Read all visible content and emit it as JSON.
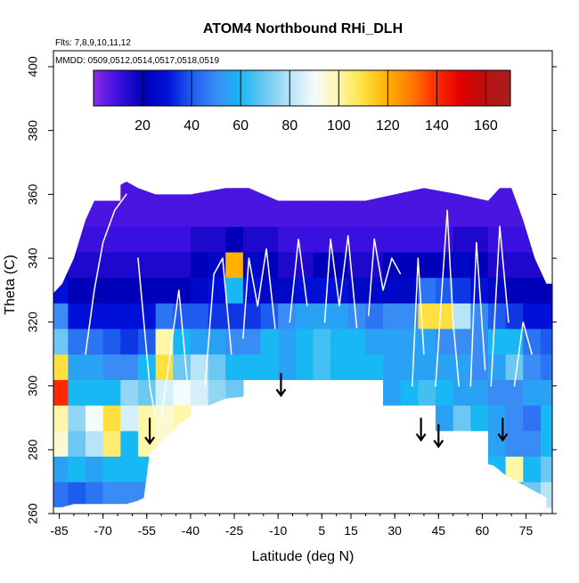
{
  "chart_data": {
    "type": "heatmap",
    "title": "ATOM4 Northbound RHi_DLH",
    "subtitle_flights": "Flts: 7,8,9,10,11,12",
    "subtitle_dates": "MMDD: 0509,0512,0514,0517,0518,0519",
    "xlabel": "Latitude (deg N)",
    "ylabel": "Theta (C)",
    "xlim": [
      -87,
      84
    ],
    "ylim": [
      260,
      405
    ],
    "x_ticks": [
      {
        "value": -85,
        "label": "-85"
      },
      {
        "value": -70,
        "label": "-70"
      },
      {
        "value": -55,
        "label": "-55"
      },
      {
        "value": -40,
        "label": "-40"
      },
      {
        "value": -25,
        "label": "-25"
      },
      {
        "value": -10,
        "label": "-10"
      },
      {
        "value": 5,
        "label": "5"
      },
      {
        "value": 15,
        "label": "15"
      },
      {
        "value": 30,
        "label": "30"
      },
      {
        "value": 45,
        "label": "45"
      },
      {
        "value": 60,
        "label": "60"
      },
      {
        "value": 75,
        "label": "75"
      }
    ],
    "y_ticks": [
      {
        "value": 260,
        "label": "260"
      },
      {
        "value": 280,
        "label": "280"
      },
      {
        "value": 300,
        "label": "300"
      },
      {
        "value": 320,
        "label": "320"
      },
      {
        "value": 340,
        "label": "340"
      },
      {
        "value": 360,
        "label": "360"
      },
      {
        "value": 380,
        "label": "380"
      },
      {
        "value": 400,
        "label": "400"
      }
    ],
    "colorbar": {
      "range": [
        0,
        170
      ],
      "ticks": [
        {
          "value": 20,
          "label": "20"
        },
        {
          "value": 40,
          "label": "40"
        },
        {
          "value": 60,
          "label": "60"
        },
        {
          "value": 80,
          "label": "80"
        },
        {
          "value": 100,
          "label": "100"
        },
        {
          "value": 120,
          "label": "120"
        },
        {
          "value": 140,
          "label": "140"
        },
        {
          "value": 160,
          "label": "160"
        }
      ],
      "stops": [
        {
          "value": 0,
          "color": "#8a2be2"
        },
        {
          "value": 10,
          "color": "#3a10e0"
        },
        {
          "value": 20,
          "color": "#0000b8"
        },
        {
          "value": 30,
          "color": "#0010d8"
        },
        {
          "value": 40,
          "color": "#1e5cf0"
        },
        {
          "value": 50,
          "color": "#3a8cf5"
        },
        {
          "value": 60,
          "color": "#18b8f5"
        },
        {
          "value": 70,
          "color": "#6cc8f2"
        },
        {
          "value": 80,
          "color": "#b8e4f8"
        },
        {
          "value": 90,
          "color": "#f4fbfb"
        },
        {
          "value": 100,
          "color": "#fff7a8"
        },
        {
          "value": 110,
          "color": "#ffe040"
        },
        {
          "value": 120,
          "color": "#ffb000"
        },
        {
          "value": 130,
          "color": "#ff7800"
        },
        {
          "value": 140,
          "color": "#ff2800"
        },
        {
          "value": 150,
          "color": "#e00000"
        },
        {
          "value": 160,
          "color": "#b81010"
        },
        {
          "value": 170,
          "color": "#a82020"
        }
      ]
    },
    "tropopause_boundary": [
      {
        "lat": -88,
        "theta": 328
      },
      {
        "lat": -84,
        "theta": 332
      },
      {
        "lat": -80,
        "theta": 340
      },
      {
        "lat": -76,
        "theta": 352
      },
      {
        "lat": -72,
        "theta": 360
      },
      {
        "lat": -66,
        "theta": 362
      },
      {
        "lat": -62,
        "theta": 364
      },
      {
        "lat": -58,
        "theta": 362
      },
      {
        "lat": -52,
        "theta": 360
      },
      {
        "lat": -40,
        "theta": 360
      },
      {
        "lat": -28,
        "theta": 362
      },
      {
        "lat": -20,
        "theta": 362
      },
      {
        "lat": -10,
        "theta": 358
      },
      {
        "lat": 0,
        "theta": 358
      },
      {
        "lat": 10,
        "theta": 358
      },
      {
        "lat": 20,
        "theta": 358
      },
      {
        "lat": 30,
        "theta": 360
      },
      {
        "lat": 40,
        "theta": 362
      },
      {
        "lat": 52,
        "theta": 360
      },
      {
        "lat": 62,
        "theta": 358
      },
      {
        "lat": 66,
        "theta": 362
      },
      {
        "lat": 70,
        "theta": 362
      },
      {
        "lat": 74,
        "theta": 352
      },
      {
        "lat": 78,
        "theta": 340
      },
      {
        "lat": 82,
        "theta": 332
      }
    ],
    "surface_boundary": [
      {
        "lat": -88,
        "theta": 262
      },
      {
        "lat": -84,
        "theta": 262
      },
      {
        "lat": -80,
        "theta": 263
      },
      {
        "lat": -70,
        "theta": 263
      },
      {
        "lat": -62,
        "theta": 263
      },
      {
        "lat": -58,
        "theta": 264
      },
      {
        "lat": -56,
        "theta": 265
      },
      {
        "lat": -54,
        "theta": 279
      },
      {
        "lat": -50,
        "theta": 282
      },
      {
        "lat": -44,
        "theta": 288
      },
      {
        "lat": -36,
        "theta": 293
      },
      {
        "lat": -28,
        "theta": 296
      },
      {
        "lat": -18,
        "theta": 297
      },
      {
        "lat": -10,
        "theta": 298
      },
      {
        "lat": -2,
        "theta": 298
      },
      {
        "lat": 6,
        "theta": 297
      },
      {
        "lat": 14,
        "theta": 295
      },
      {
        "lat": 22,
        "theta": 292
      },
      {
        "lat": 30,
        "theta": 289
      },
      {
        "lat": 38,
        "theta": 286
      },
      {
        "lat": 45,
        "theta": 282
      },
      {
        "lat": 50,
        "theta": 285
      },
      {
        "lat": 56,
        "theta": 282
      },
      {
        "lat": 60,
        "theta": 276
      },
      {
        "lat": 64,
        "theta": 275
      },
      {
        "lat": 68,
        "theta": 272
      },
      {
        "lat": 72,
        "theta": 270
      },
      {
        "lat": 76,
        "theta": 268
      },
      {
        "lat": 82,
        "theta": 265
      }
    ],
    "rhi_field": {
      "lat_bins": [
        -88,
        -82,
        -76,
        -70,
        -64,
        -58,
        -52,
        -46,
        -40,
        -34,
        -28,
        -22,
        -16,
        -10,
        -4,
        2,
        8,
        14,
        20,
        26,
        32,
        38,
        44,
        50,
        56,
        62,
        68,
        74,
        80
      ],
      "theta_bins": [
        262,
        270,
        278,
        286,
        294,
        302,
        310,
        318,
        326,
        334,
        342,
        350,
        358
      ],
      "rows": [
        [
          45,
          40,
          45,
          50,
          50,
          50,
          0,
          0,
          0,
          0,
          0,
          0,
          0,
          0,
          0,
          0,
          0,
          0,
          0,
          0,
          0,
          0,
          0,
          0,
          0,
          70,
          60,
          70,
          80
        ],
        [
          55,
          60,
          55,
          60,
          60,
          60,
          0,
          0,
          0,
          0,
          0,
          0,
          0,
          0,
          0,
          0,
          0,
          0,
          0,
          0,
          0,
          0,
          0,
          0,
          0,
          60,
          100,
          60,
          70
        ],
        [
          95,
          70,
          80,
          105,
          60,
          100,
          95,
          0,
          0,
          0,
          0,
          0,
          0,
          0,
          0,
          0,
          0,
          0,
          0,
          0,
          0,
          0,
          0,
          0,
          0,
          55,
          50,
          50,
          60
        ],
        [
          100,
          75,
          90,
          110,
          85,
          100,
          95,
          100,
          0,
          0,
          0,
          0,
          0,
          0,
          0,
          0,
          0,
          0,
          0,
          0,
          0,
          0,
          55,
          70,
          60,
          55,
          50,
          45,
          60
        ],
        [
          140,
          60,
          60,
          60,
          75,
          70,
          85,
          90,
          85,
          75,
          70,
          0,
          0,
          0,
          0,
          0,
          0,
          0,
          0,
          55,
          60,
          65,
          60,
          55,
          55,
          50,
          50,
          55,
          55
        ],
        [
          110,
          55,
          55,
          50,
          50,
          60,
          110,
          70,
          80,
          70,
          60,
          60,
          60,
          55,
          60,
          65,
          60,
          60,
          60,
          55,
          55,
          55,
          55,
          55,
          50,
          55,
          70,
          50,
          45
        ],
        [
          70,
          45,
          45,
          40,
          35,
          40,
          100,
          60,
          55,
          55,
          50,
          50,
          60,
          55,
          60,
          65,
          60,
          60,
          55,
          55,
          55,
          55,
          50,
          50,
          50,
          60,
          60,
          45,
          40
        ],
        [
          50,
          30,
          30,
          30,
          30,
          30,
          45,
          40,
          40,
          35,
          35,
          35,
          40,
          50,
          55,
          55,
          55,
          50,
          45,
          50,
          50,
          110,
          110,
          80,
          50,
          40,
          35,
          30,
          30
        ],
        [
          30,
          20,
          20,
          20,
          20,
          20,
          20,
          20,
          25,
          30,
          60,
          30,
          25,
          25,
          30,
          30,
          30,
          25,
          25,
          25,
          25,
          45,
          40,
          35,
          30,
          25,
          20,
          20,
          20
        ],
        [
          20,
          15,
          15,
          15,
          15,
          15,
          15,
          15,
          20,
          25,
          120,
          25,
          20,
          15,
          15,
          20,
          20,
          15,
          15,
          20,
          20,
          20,
          20,
          25,
          20,
          15,
          15,
          15,
          15
        ],
        [
          10,
          10,
          10,
          10,
          10,
          10,
          10,
          10,
          15,
          15,
          20,
          15,
          15,
          10,
          10,
          10,
          10,
          10,
          10,
          10,
          10,
          10,
          10,
          15,
          15,
          10,
          10,
          10,
          10
        ],
        [
          8,
          8,
          8,
          8,
          8,
          8,
          8,
          8,
          8,
          8,
          8,
          8,
          8,
          8,
          8,
          8,
          8,
          8,
          8,
          8,
          8,
          8,
          8,
          8,
          8,
          8,
          8,
          8,
          8
        ],
        [
          0,
          0,
          0,
          0,
          8,
          8,
          8,
          8,
          8,
          8,
          8,
          8,
          8,
          8,
          8,
          8,
          8,
          8,
          8,
          8,
          8,
          8,
          8,
          8,
          8,
          8,
          8,
          0,
          0
        ]
      ]
    },
    "aircraft_tracks": [
      [
        {
          "lat": -76,
          "theta": 310
        },
        {
          "lat": -73,
          "theta": 330
        },
        {
          "lat": -70,
          "theta": 345
        },
        {
          "lat": -66,
          "theta": 355
        },
        {
          "lat": -62,
          "theta": 360
        }
      ],
      [
        {
          "lat": -58,
          "theta": 340
        },
        {
          "lat": -56,
          "theta": 320
        },
        {
          "lat": -54,
          "theta": 300
        },
        {
          "lat": -52,
          "theta": 290
        }
      ],
      [
        {
          "lat": -50,
          "theta": 290
        },
        {
          "lat": -47,
          "theta": 310
        },
        {
          "lat": -44,
          "theta": 330
        },
        {
          "lat": -41,
          "theta": 300
        }
      ],
      [
        {
          "lat": -35,
          "theta": 300
        },
        {
          "lat": -32,
          "theta": 335
        },
        {
          "lat": -29,
          "theta": 340
        },
        {
          "lat": -26,
          "theta": 310
        }
      ],
      [
        {
          "lat": -22,
          "theta": 315
        },
        {
          "lat": -20,
          "theta": 340
        },
        {
          "lat": -17,
          "theta": 325
        },
        {
          "lat": -14,
          "theta": 343
        },
        {
          "lat": -11,
          "theta": 318
        }
      ],
      [
        {
          "lat": -6,
          "theta": 320
        },
        {
          "lat": -3,
          "theta": 346
        },
        {
          "lat": 0,
          "theta": 325
        }
      ],
      [
        {
          "lat": 6,
          "theta": 320
        },
        {
          "lat": 8,
          "theta": 346
        },
        {
          "lat": 11,
          "theta": 325
        },
        {
          "lat": 14,
          "theta": 347
        },
        {
          "lat": 17,
          "theta": 318
        }
      ],
      [
        {
          "lat": 21,
          "theta": 322
        },
        {
          "lat": 23,
          "theta": 346
        },
        {
          "lat": 26,
          "theta": 330
        },
        {
          "lat": 29,
          "theta": 340
        },
        {
          "lat": 32,
          "theta": 335
        }
      ],
      [
        {
          "lat": 36,
          "theta": 300
        },
        {
          "lat": 38,
          "theta": 340
        },
        {
          "lat": 40,
          "theta": 310
        }
      ],
      [
        {
          "lat": 44,
          "theta": 300
        },
        {
          "lat": 48,
          "theta": 355
        },
        {
          "lat": 50,
          "theta": 320
        },
        {
          "lat": 52,
          "theta": 300
        }
      ],
      [
        {
          "lat": 56,
          "theta": 300
        },
        {
          "lat": 58,
          "theta": 345
        },
        {
          "lat": 61,
          "theta": 305
        }
      ],
      [
        {
          "lat": 63,
          "theta": 300
        },
        {
          "lat": 66,
          "theta": 350
        },
        {
          "lat": 69,
          "theta": 320
        }
      ],
      [
        {
          "lat": 71,
          "theta": 300
        },
        {
          "lat": 74,
          "theta": 320
        },
        {
          "lat": 77,
          "theta": 310
        }
      ]
    ],
    "arrows": [
      {
        "lat": -54,
        "theta_top": 290,
        "theta_bottom": 282
      },
      {
        "lat": -9,
        "theta_top": 304,
        "theta_bottom": 297
      },
      {
        "lat": 39,
        "theta_top": 290,
        "theta_bottom": 283
      },
      {
        "lat": 45,
        "theta_top": 288,
        "theta_bottom": 281
      },
      {
        "lat": 67,
        "theta_top": 290,
        "theta_bottom": 283
      }
    ]
  }
}
